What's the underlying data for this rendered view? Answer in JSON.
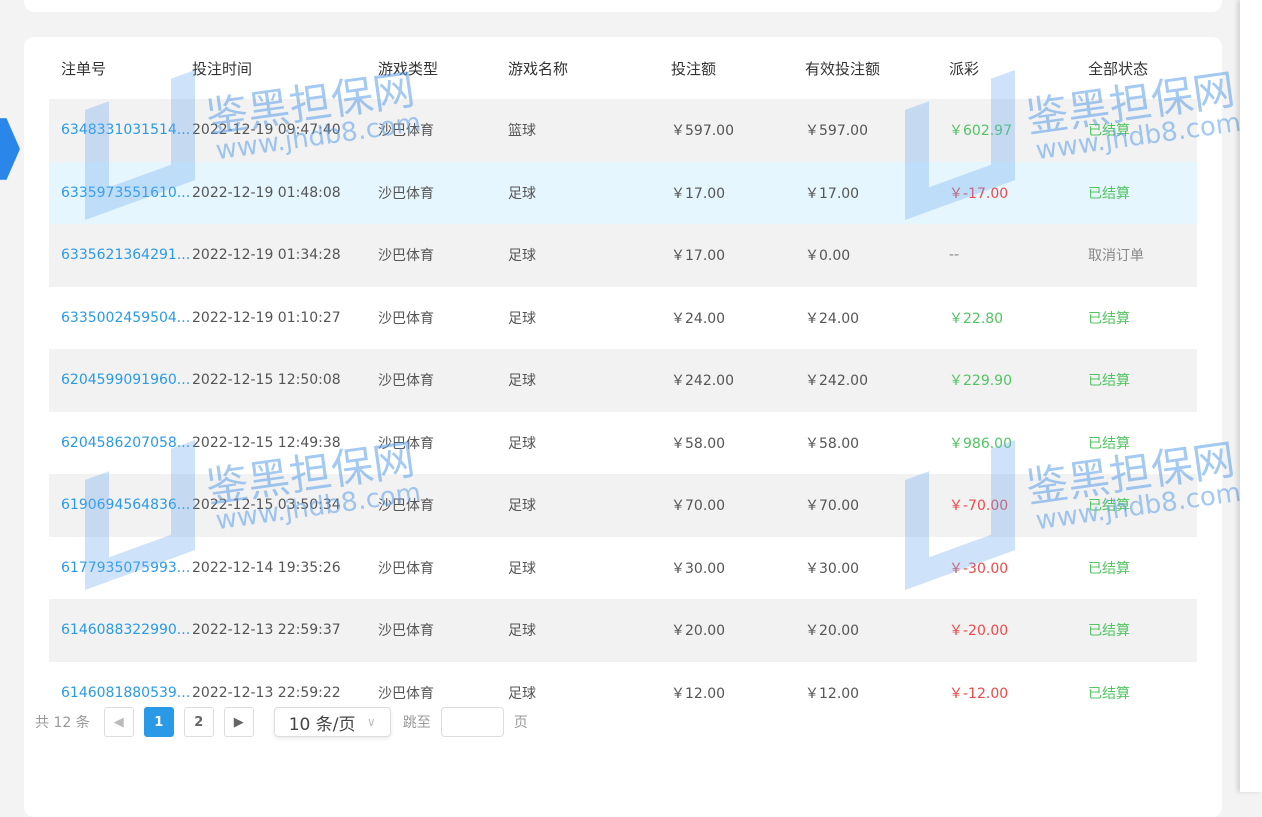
{
  "table": {
    "headers": [
      "注单号",
      "投注时间",
      "游戏类型",
      "游戏名称",
      "投注额",
      "有效投注额",
      "派彩",
      "全部状态"
    ],
    "rows": [
      [
        "6348331031514...",
        "2022-12-19 09:47:40",
        "沙巴体育",
        "篮球",
        "￥597.00",
        "￥597.00",
        "￥602.97",
        "已结算"
      ],
      [
        "6335973551610...",
        "2022-12-19 01:48:08",
        "沙巴体育",
        "足球",
        "￥17.00",
        "￥17.00",
        "￥-17.00",
        "已结算"
      ],
      [
        "6335621364291...",
        "2022-12-19 01:34:28",
        "沙巴体育",
        "足球",
        "￥17.00",
        "￥0.00",
        "--",
        "取消订单"
      ],
      [
        "6335002459504...",
        "2022-12-19 01:10:27",
        "沙巴体育",
        "足球",
        "￥24.00",
        "￥24.00",
        "￥22.80",
        "已结算"
      ],
      [
        "6204599091960...",
        "2022-12-15 12:50:08",
        "沙巴体育",
        "足球",
        "￥242.00",
        "￥242.00",
        "￥229.90",
        "已结算"
      ],
      [
        "6204586207058...",
        "2022-12-15 12:49:38",
        "沙巴体育",
        "足球",
        "￥58.00",
        "￥58.00",
        "￥986.00",
        "已结算"
      ],
      [
        "6190694564836...",
        "2022-12-15 03:50:34",
        "沙巴体育",
        "足球",
        "￥70.00",
        "￥70.00",
        "￥-70.00",
        "已结算"
      ],
      [
        "6177935075993...",
        "2022-12-14 19:35:26",
        "沙巴体育",
        "足球",
        "￥30.00",
        "￥30.00",
        "￥-30.00",
        "已结算"
      ],
      [
        "6146088322990...",
        "2022-12-13 22:59:37",
        "沙巴体育",
        "足球",
        "￥20.00",
        "￥20.00",
        "￥-20.00",
        "已结算"
      ],
      [
        "6146081880539...",
        "2022-12-13 22:59:22",
        "沙巴体育",
        "足球",
        "￥12.00",
        "￥12.00",
        "￥-12.00",
        "已结算"
      ]
    ]
  },
  "pager": {
    "total": "共 12 条",
    "pages": [
      "1",
      "2"
    ],
    "current": "1",
    "page_size": "10 条/页",
    "jump_label": "跳至",
    "page_suffix": "页",
    "jump_value": ""
  },
  "watermark": {
    "title": "鉴黑担保网",
    "url": "www.jhdb8.com"
  },
  "colors": {
    "link": "#2a9ae6",
    "positive": "#52c462",
    "negative": "#ec4a4a",
    "highlight_row": "#e6f6fe"
  }
}
